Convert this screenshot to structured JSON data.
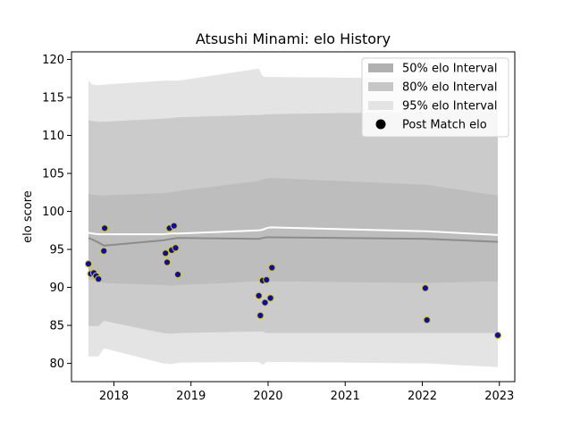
{
  "chart_data": {
    "type": "scatter",
    "title": "Atsushi Minami: elo History",
    "xlabel": "",
    "ylabel": "elo score",
    "xlim": [
      2017.45,
      2023.2
    ],
    "ylim": [
      77.6,
      121.0
    ],
    "xticks": [
      2018,
      2019,
      2020,
      2021,
      2022,
      2023
    ],
    "yticks": [
      80,
      85,
      90,
      95,
      100,
      105,
      110,
      115,
      120
    ],
    "grid": false,
    "legend_position": "top-right",
    "legend": [
      {
        "label": "50% elo Interval",
        "kind": "patch",
        "color": "#b0b0b0"
      },
      {
        "label": "80% elo Interval",
        "kind": "patch",
        "color": "#c6c6c6"
      },
      {
        "label": "95% elo Interval",
        "kind": "patch",
        "color": "#e4e4e4"
      },
      {
        "label": "Post Match elo",
        "kind": "marker",
        "color": "#000000"
      }
    ],
    "colors": {
      "band95": "#e4e4e4",
      "band80": "#cbcbcb",
      "band50": "#bdbdbd",
      "mean_line": "#ffffff",
      "median_line": "#8c8c8c",
      "point_fill": "#0b0bb0",
      "point_edge": "#d4c800"
    },
    "series": [
      {
        "name": "95% elo Interval",
        "kind": "band",
        "x": [
          2017.67,
          2017.72,
          2017.8,
          2017.87,
          2018.64,
          2018.75,
          2018.84,
          2019.88,
          2019.93,
          2019.98,
          2020.03,
          2022.05,
          2022.98
        ],
        "upper": [
          117.2,
          116.7,
          116.6,
          116.7,
          117.2,
          117.2,
          117.2,
          118.8,
          117.8,
          117.7,
          117.7,
          117.5,
          117.3
        ],
        "lower": [
          80.9,
          80.9,
          80.9,
          82.0,
          80.0,
          79.9,
          80.1,
          80.2,
          79.8,
          80.2,
          80.2,
          80.0,
          79.5
        ]
      },
      {
        "name": "80% elo Interval",
        "kind": "band",
        "x": [
          2017.67,
          2017.72,
          2017.8,
          2017.87,
          2018.64,
          2018.75,
          2018.84,
          2019.88,
          2019.93,
          2019.98,
          2020.03,
          2022.05,
          2022.98
        ],
        "upper": [
          112.0,
          111.9,
          111.8,
          111.8,
          112.2,
          112.3,
          112.4,
          112.7,
          112.7,
          112.8,
          112.8,
          113.1,
          113.2
        ],
        "lower": [
          84.9,
          84.9,
          84.9,
          85.6,
          84.0,
          83.9,
          84.0,
          84.2,
          84.2,
          84.0,
          84.0,
          84.0,
          84.0
        ]
      },
      {
        "name": "50% elo Interval",
        "kind": "band",
        "x": [
          2017.67,
          2017.72,
          2017.8,
          2017.87,
          2018.64,
          2018.75,
          2018.84,
          2019.88,
          2019.93,
          2019.98,
          2020.03,
          2022.05,
          2022.98
        ],
        "upper": [
          102.3,
          102.2,
          102.1,
          102.1,
          102.4,
          102.5,
          102.7,
          104.0,
          104.2,
          104.3,
          104.4,
          103.5,
          102.1
        ],
        "lower": [
          91.0,
          91.0,
          90.8,
          90.6,
          90.3,
          90.2,
          90.3,
          90.8,
          90.8,
          90.8,
          90.8,
          90.6,
          90.8
        ]
      },
      {
        "name": "",
        "kind": "line",
        "role": "mean",
        "x": [
          2017.67,
          2017.72,
          2017.8,
          2017.87,
          2018.64,
          2018.75,
          2018.84,
          2019.88,
          2019.93,
          2019.98,
          2020.03,
          2022.05,
          2022.98
        ],
        "y": [
          97.2,
          97.1,
          97.0,
          97.0,
          97.0,
          97.1,
          97.1,
          97.5,
          97.6,
          97.8,
          97.9,
          97.4,
          96.9
        ]
      },
      {
        "name": "",
        "kind": "line",
        "role": "median",
        "x": [
          2017.67,
          2017.72,
          2017.8,
          2017.87,
          2018.64,
          2018.75,
          2018.84,
          2019.88,
          2019.93,
          2019.98,
          2020.03,
          2022.05,
          2022.98
        ],
        "y": [
          96.5,
          96.3,
          95.9,
          95.5,
          96.2,
          96.4,
          96.5,
          96.4,
          96.5,
          96.6,
          96.6,
          96.4,
          96.0
        ]
      },
      {
        "name": "Post Match elo",
        "kind": "points",
        "x": [
          2017.67,
          2017.7,
          2017.74,
          2017.77,
          2017.8,
          2017.87,
          2017.88,
          2018.67,
          2018.69,
          2018.72,
          2018.75,
          2018.78,
          2018.8,
          2018.83,
          2019.88,
          2019.9,
          2019.93,
          2019.96,
          2019.98,
          2020.03,
          2020.05,
          2022.04,
          2022.06,
          2022.98
        ],
        "y": [
          93.1,
          91.8,
          91.9,
          91.5,
          91.1,
          94.8,
          97.8,
          94.5,
          93.3,
          97.8,
          94.9,
          98.1,
          95.2,
          91.7,
          88.9,
          86.3,
          90.9,
          88.0,
          91.0,
          88.6,
          92.6,
          89.9,
          85.7,
          83.7
        ]
      }
    ]
  }
}
